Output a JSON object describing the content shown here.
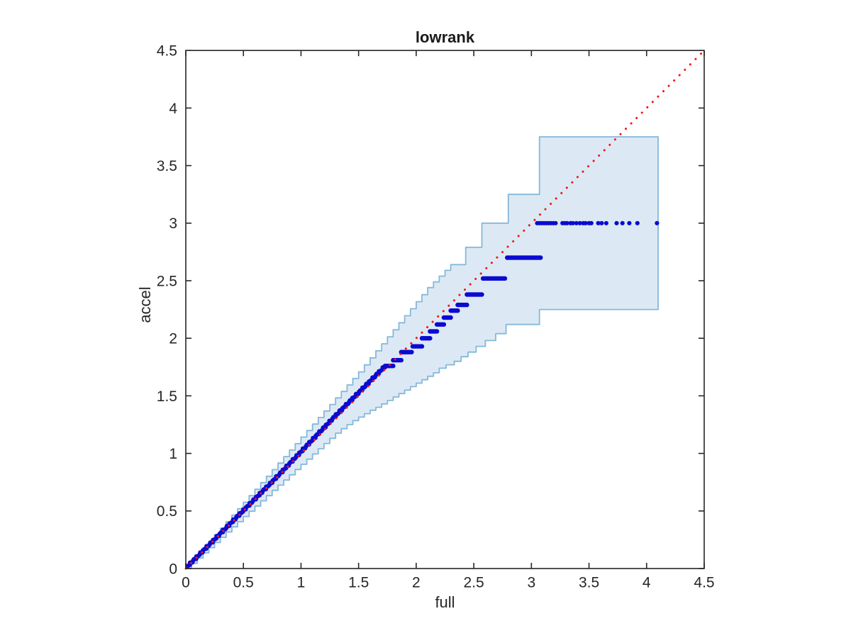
{
  "figure": {
    "background": "#ffffff"
  },
  "chart_data": {
    "type": "scatter",
    "title": "lowrank",
    "xlabel": "full",
    "ylabel": "accel",
    "xlim": [
      0,
      4.5
    ],
    "ylim": [
      0,
      4.5
    ],
    "xticks": [
      0,
      0.5,
      1,
      1.5,
      2,
      2.5,
      3,
      3.5,
      4,
      4.5
    ],
    "yticks": [
      0,
      0.5,
      1,
      1.5,
      2,
      2.5,
      3,
      3.5,
      4,
      4.5
    ],
    "xtick_labels": [
      "0",
      "0.5",
      "1",
      "1.5",
      "2",
      "2.5",
      "3",
      "3.5",
      "4",
      "4.5"
    ],
    "ytick_labels": [
      "0",
      "0.5",
      "1",
      "1.5",
      "2",
      "2.5",
      "3",
      "3.5",
      "4",
      "4.5"
    ],
    "grid": false,
    "box": true,
    "legend": null,
    "colors": {
      "points": "#0b0bd0",
      "band_fill": "#dce9f5",
      "band_edge": "#85b8d8",
      "reference": "#f71414",
      "axis": "#262626"
    },
    "reference_line": {
      "kind": "identity",
      "x_from": 0,
      "x_to": 4.5,
      "style": "dotted"
    },
    "confidence_band": {
      "upper": [
        [
          0,
          0.02
        ],
        [
          0.05,
          0.067
        ],
        [
          0.1,
          0.123
        ],
        [
          0.15,
          0.18
        ],
        [
          0.2,
          0.236
        ],
        [
          0.25,
          0.293
        ],
        [
          0.3,
          0.35
        ],
        [
          0.35,
          0.406
        ],
        [
          0.4,
          0.463
        ],
        [
          0.45,
          0.519
        ],
        [
          0.5,
          0.576
        ],
        [
          0.55,
          0.633
        ],
        [
          0.6,
          0.689
        ],
        [
          0.65,
          0.746
        ],
        [
          0.7,
          0.802
        ],
        [
          0.75,
          0.859
        ],
        [
          0.8,
          0.916
        ],
        [
          0.85,
          0.972
        ],
        [
          0.9,
          1.029
        ],
        [
          0.95,
          1.085
        ],
        [
          1,
          1.142
        ],
        [
          1.05,
          1.199
        ],
        [
          1.1,
          1.255
        ],
        [
          1.15,
          1.312
        ],
        [
          1.2,
          1.368
        ],
        [
          1.25,
          1.425
        ],
        [
          1.3,
          1.482
        ],
        [
          1.35,
          1.538
        ],
        [
          1.4,
          1.595
        ],
        [
          1.45,
          1.651
        ],
        [
          1.5,
          1.708
        ],
        [
          1.55,
          1.769
        ],
        [
          1.6,
          1.83
        ],
        [
          1.65,
          1.891
        ],
        [
          1.7,
          1.952
        ],
        [
          1.75,
          2.013
        ],
        [
          1.8,
          2.074
        ],
        [
          1.85,
          2.135
        ],
        [
          1.9,
          2.196
        ],
        [
          1.95,
          2.257
        ],
        [
          2,
          2.318
        ],
        [
          2.05,
          2.379
        ],
        [
          2.1,
          2.44
        ],
        [
          2.15,
          2.49
        ],
        [
          2.2,
          2.54
        ],
        [
          2.25,
          2.59
        ],
        [
          2.3,
          2.64
        ],
        [
          2.43,
          2.79
        ],
        [
          2.57,
          3.0
        ],
        [
          2.8,
          3.25
        ],
        [
          3.07,
          3.75
        ],
        [
          4.1,
          3.75
        ]
      ],
      "lower": [
        [
          0,
          0
        ],
        [
          0.05,
          0.045
        ],
        [
          0.1,
          0.09
        ],
        [
          0.15,
          0.136
        ],
        [
          0.2,
          0.181
        ],
        [
          0.25,
          0.226
        ],
        [
          0.3,
          0.271
        ],
        [
          0.35,
          0.317
        ],
        [
          0.4,
          0.362
        ],
        [
          0.45,
          0.407
        ],
        [
          0.5,
          0.452
        ],
        [
          0.55,
          0.498
        ],
        [
          0.6,
          0.543
        ],
        [
          0.65,
          0.588
        ],
        [
          0.7,
          0.633
        ],
        [
          0.75,
          0.679
        ],
        [
          0.8,
          0.724
        ],
        [
          0.85,
          0.769
        ],
        [
          0.9,
          0.814
        ],
        [
          0.95,
          0.86
        ],
        [
          1,
          0.905
        ],
        [
          1.05,
          0.95
        ],
        [
          1.1,
          0.995
        ],
        [
          1.15,
          1.041
        ],
        [
          1.2,
          1.086
        ],
        [
          1.25,
          1.131
        ],
        [
          1.3,
          1.176
        ],
        [
          1.35,
          1.215
        ],
        [
          1.4,
          1.25
        ],
        [
          1.45,
          1.285
        ],
        [
          1.5,
          1.315
        ],
        [
          1.55,
          1.345
        ],
        [
          1.6,
          1.375
        ],
        [
          1.65,
          1.4
        ],
        [
          1.7,
          1.43
        ],
        [
          1.75,
          1.46
        ],
        [
          1.8,
          1.49
        ],
        [
          1.85,
          1.52
        ],
        [
          1.9,
          1.55
        ],
        [
          1.95,
          1.58
        ],
        [
          2,
          1.61
        ],
        [
          2.05,
          1.64
        ],
        [
          2.1,
          1.67
        ],
        [
          2.15,
          1.7
        ],
        [
          2.2,
          1.74
        ],
        [
          2.26,
          1.77
        ],
        [
          2.33,
          1.8
        ],
        [
          2.39,
          1.84
        ],
        [
          2.45,
          1.88
        ],
        [
          2.52,
          1.93
        ],
        [
          2.6,
          1.98
        ],
        [
          2.69,
          2.04
        ],
        [
          2.78,
          2.12
        ],
        [
          3.07,
          2.25
        ],
        [
          4.1,
          2.25
        ]
      ]
    },
    "scatter": {
      "dense_diagonal_run": {
        "x_start": 0.02,
        "x_end": 1.73,
        "spacing": 0.011,
        "relation": "y ~ x"
      },
      "quantized_rows": [
        {
          "y": 1.76,
          "x0": 1.73,
          "x1": 1.8,
          "n": 7
        },
        {
          "y": 1.81,
          "x0": 1.8,
          "x1": 1.87,
          "n": 7
        },
        {
          "y": 1.88,
          "x0": 1.87,
          "x1": 1.96,
          "n": 9
        },
        {
          "y": 1.93,
          "x0": 1.97,
          "x1": 2.05,
          "n": 8
        },
        {
          "y": 2.0,
          "x0": 2.05,
          "x1": 2.12,
          "n": 7
        },
        {
          "y": 2.06,
          "x0": 2.12,
          "x1": 2.18,
          "n": 6
        },
        {
          "y": 2.12,
          "x0": 2.18,
          "x1": 2.24,
          "n": 6
        },
        {
          "y": 2.18,
          "x0": 2.24,
          "x1": 2.3,
          "n": 6
        },
        {
          "y": 2.24,
          "x0": 2.3,
          "x1": 2.36,
          "n": 6
        },
        {
          "y": 2.29,
          "x0": 2.36,
          "x1": 2.44,
          "n": 8
        },
        {
          "y": 2.38,
          "x0": 2.44,
          "x1": 2.57,
          "n": 12
        },
        {
          "y": 2.52,
          "x0": 2.58,
          "x1": 2.77,
          "n": 17
        },
        {
          "y": 2.7,
          "x0": 2.79,
          "x1": 3.08,
          "n": 24
        },
        {
          "y": 3.0,
          "xs": [
            3.05,
            3.07,
            3.09,
            3.11,
            3.13,
            3.15,
            3.17,
            3.19,
            3.21,
            3.27,
            3.29,
            3.31,
            3.34,
            3.36,
            3.39,
            3.42,
            3.45,
            3.47,
            3.5,
            3.52,
            3.58,
            3.61,
            3.65,
            3.74,
            3.79,
            3.85,
            3.92,
            4.09
          ]
        }
      ]
    }
  }
}
